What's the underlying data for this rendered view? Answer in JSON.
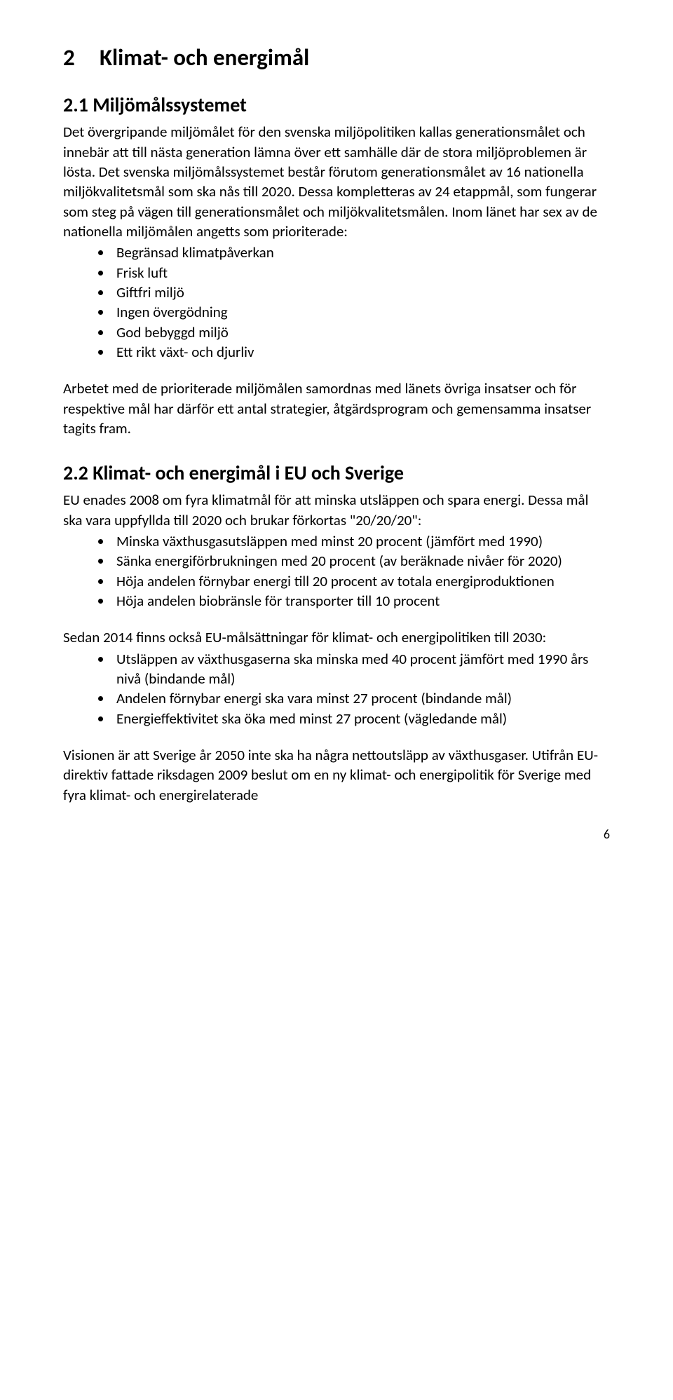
{
  "h1_num": "2",
  "h1_title": "Klimat- och energimål",
  "sec21_title": "2.1 Miljömålssystemet",
  "sec21_p1": "Det övergripande miljömålet för den svenska miljöpolitiken kallas generationsmålet och innebär att till nästa generation lämna över ett samhälle där de stora miljöproblemen är lösta. Det svenska miljömålssystemet består förutom generationsmålet av 16 nationella miljökvalitetsmål som ska nås till 2020. Dessa kompletteras av 24 etappmål, som fungerar som steg på vägen till generationsmålet och miljökvalitetsmålen. Inom länet har sex av de nationella miljömålen angetts som prioriterade:",
  "sec21_items": [
    "Begränsad klimatpåverkan",
    "Frisk luft",
    "Giftfri miljö",
    "Ingen övergödning",
    "God bebyggd miljö",
    "Ett rikt växt- och djurliv"
  ],
  "sec21_p2": "Arbetet med de prioriterade miljömålen samordnas med länets övriga insatser och för respektive mål har därför ett antal strategier, åtgärdsprogram och gemensamma insatser tagits fram.",
  "sec22_title": "2.2 Klimat- och energimål i EU och Sverige",
  "sec22_p1": "EU enades 2008 om fyra klimatmål för att minska utsläppen och spara energi. Dessa mål ska vara uppfyllda till 2020 och brukar förkortas \"20/20/20\":",
  "sec22_items1": [
    "Minska växthusgasutsläppen med minst 20 procent (jämfört med 1990)",
    "Sänka energiförbrukningen med 20 procent (av beräknade nivåer för 2020)",
    "Höja andelen förnybar energi till 20 procent av totala energiproduktionen",
    "Höja andelen biobränsle för transporter till 10 procent"
  ],
  "sec22_p2": "Sedan 2014 finns också EU-målsättningar för klimat- och energipolitiken till 2030:",
  "sec22_items2": [
    "Utsläppen av växthusgaserna ska minska med 40 procent jämfört med 1990 års nivå (bindande mål)",
    "Andelen förnybar energi ska vara minst 27 procent (bindande mål)",
    "Energieffektivitet ska öka med minst 27 procent (vägledande mål)"
  ],
  "sec22_p3": "Visionen är att Sverige år 2050 inte ska ha några nettoutsläpp av växthusgaser. Utifrån EU-direktiv fattade riksdagen 2009 beslut om en ny klimat- och energipolitik för Sverige med fyra klimat- och energirelaterade",
  "page_number": "6"
}
